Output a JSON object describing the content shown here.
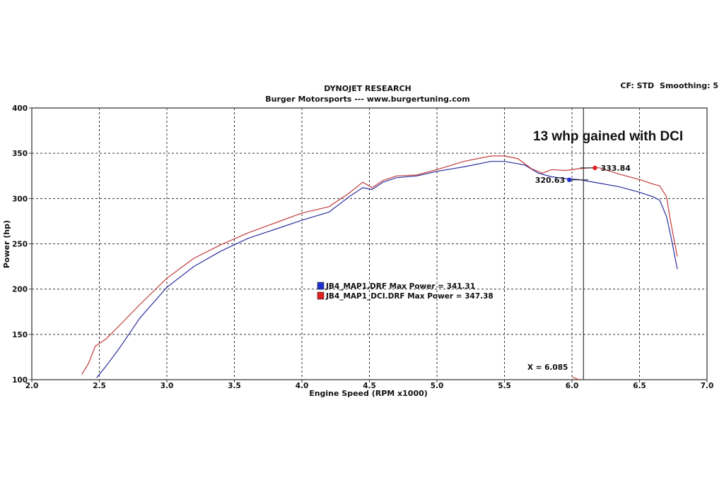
{
  "header": {
    "title": "DYNOJET RESEARCH",
    "subtitle": "Burger Motorsports --- www.burgertuning.com",
    "cf_label": "CF: STD",
    "smoothing_label": "Smoothing: 5"
  },
  "annotation": "13 whp gained with DCI",
  "cursor": {
    "x": 6.085,
    "label": "X = 6.085"
  },
  "markers": [
    {
      "series": 0,
      "x": 5.98,
      "y": 320.63,
      "label": "320.63"
    },
    {
      "series": 1,
      "x": 6.17,
      "y": 333.84,
      "label": "333.84"
    }
  ],
  "legend_entries": [
    "JB4_MAP1.DRF Max Power = 341.31",
    "JB4_MAP1_DCI.DRF Max Power = 347.38"
  ],
  "colors": {
    "series_blue": "#2b2f9e",
    "series_red": "#c23b3b",
    "grid": "#333333",
    "frame": "#555555",
    "marker_blue": "#1f2fd0",
    "marker_red": "#e02020"
  },
  "chart_data": {
    "type": "line",
    "xlabel": "Engine Speed (RPM x1000)",
    "ylabel": "Power (hp)",
    "xlim": [
      2.0,
      7.0
    ],
    "ylim": [
      100,
      400
    ],
    "x_ticks": [
      "2.0",
      "2.5",
      "3.0",
      "3.5",
      "4.0",
      "4.5",
      "5.0",
      "5.5",
      "6.0",
      "6.5",
      "7.0"
    ],
    "y_ticks": [
      "100",
      "150",
      "200",
      "250",
      "300",
      "350",
      "400"
    ],
    "grid": true,
    "series": [
      {
        "name": "JB4_MAP1.DRF",
        "max_power": 341.31,
        "x": [
          2.48,
          2.55,
          2.65,
          2.8,
          3.0,
          3.2,
          3.4,
          3.6,
          3.8,
          4.0,
          4.2,
          4.35,
          4.45,
          4.52,
          4.6,
          4.7,
          4.85,
          5.0,
          5.2,
          5.4,
          5.5,
          5.65,
          5.75,
          5.85,
          5.95,
          6.05,
          6.2,
          6.35,
          6.5,
          6.6,
          6.65,
          6.7,
          6.73,
          6.78
        ],
        "y": [
          102,
          115,
          135,
          168,
          202,
          225,
          242,
          256,
          266,
          276,
          285,
          302,
          312,
          310,
          318,
          323,
          325,
          330,
          335,
          341,
          341,
          337,
          328,
          324,
          322,
          321,
          317,
          313,
          307,
          302,
          298,
          280,
          260,
          222
        ]
      },
      {
        "name": "JB4_MAP1_DCI.DRF",
        "max_power": 347.38,
        "x": [
          2.37,
          2.42,
          2.47,
          2.55,
          2.65,
          2.8,
          3.0,
          3.2,
          3.4,
          3.6,
          3.8,
          4.0,
          4.2,
          4.35,
          4.45,
          4.52,
          4.6,
          4.7,
          4.85,
          5.0,
          5.2,
          5.4,
          5.5,
          5.6,
          5.7,
          5.78,
          5.85,
          5.95,
          6.05,
          6.15,
          6.2,
          6.35,
          6.5,
          6.6,
          6.65,
          6.7,
          6.73,
          6.78
        ],
        "y": [
          106,
          118,
          137,
          145,
          160,
          183,
          212,
          234,
          249,
          262,
          273,
          284,
          291,
          306,
          318,
          312,
          320,
          325,
          326,
          332,
          341,
          347,
          347,
          344,
          333,
          328,
          332,
          331,
          333,
          334,
          334,
          327,
          321,
          316,
          314,
          302,
          275,
          236
        ]
      }
    ]
  }
}
